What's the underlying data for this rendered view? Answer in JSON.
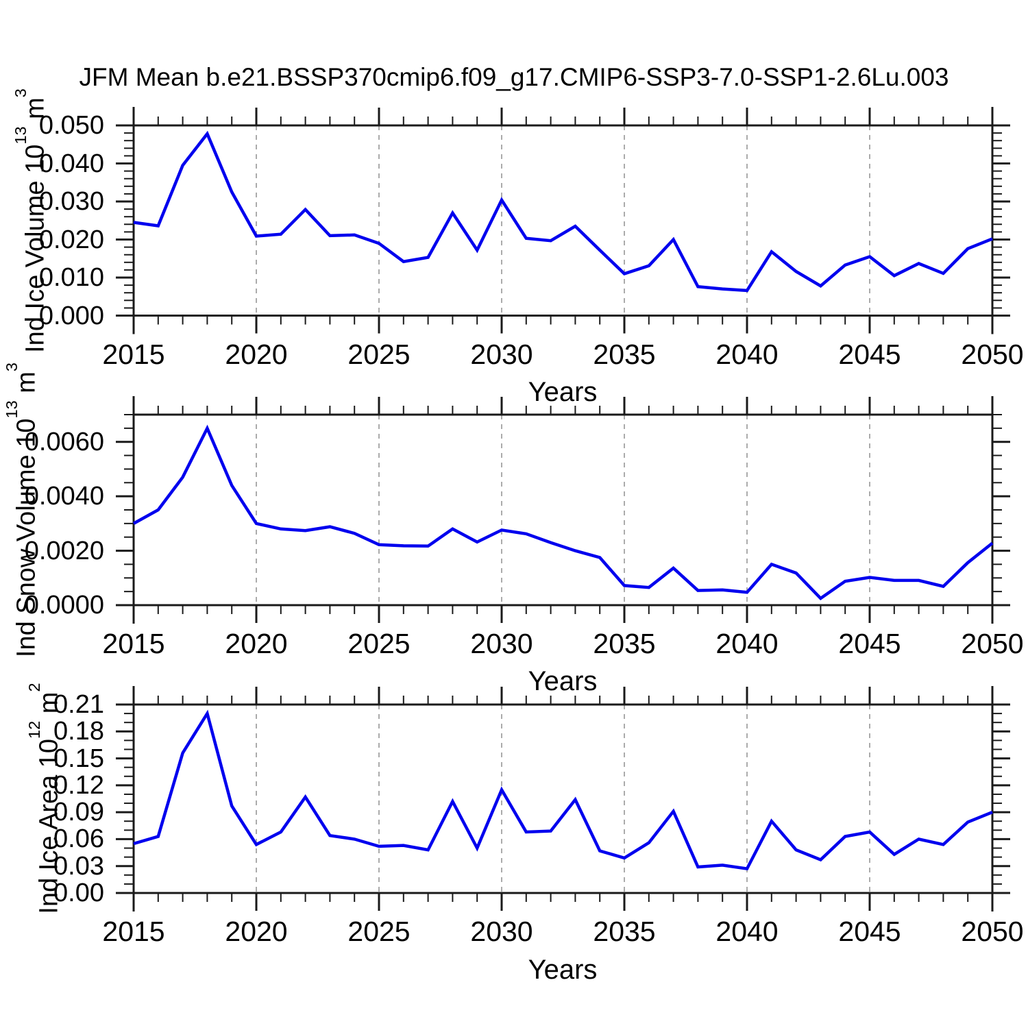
{
  "title": "JFM Mean b.e21.BSSP370cmip6.f09_g17.CMIP6-SSP3-7.0-SSP1-2.6Lu.003",
  "figure": {
    "background": "#ffffff",
    "line_color": "#0000EE",
    "frame_color": "#1a1a1a",
    "grid_color": "#ABABAB",
    "text_color": "#000000"
  },
  "chart_data": [
    {
      "type": "line",
      "title": "",
      "xlabel": "Years",
      "ylabel": "Ind Ice Volume 10^13 m^3",
      "ylabel_parts": {
        "text1": "Ind Ice Volume 10",
        "sup1": "13",
        "text2": " m",
        "sup2": "3"
      },
      "xlim": [
        2015,
        2050
      ],
      "ylim": [
        0,
        0.05
      ],
      "xtick_values": [
        2015,
        2020,
        2025,
        2030,
        2035,
        2040,
        2045,
        2050
      ],
      "xtick_labels": [
        "2015",
        "2020",
        "2025",
        "2030",
        "2035",
        "2040",
        "2045",
        "2050"
      ],
      "xminor_step": 1,
      "ytick_values": [
        0.0,
        0.01,
        0.02,
        0.03,
        0.04,
        0.05
      ],
      "ytick_labels": [
        "0.000",
        "0.010",
        "0.020",
        "0.030",
        "0.040",
        "0.050"
      ],
      "yminor_step": 0.002,
      "grid_x": [
        2020,
        2025,
        2030,
        2035,
        2040,
        2045
      ],
      "grid_style": "dashed-vertical",
      "legend": "none",
      "x": [
        2015,
        2016,
        2017,
        2018,
        2019,
        2020,
        2021,
        2022,
        2023,
        2024,
        2025,
        2026,
        2027,
        2028,
        2029,
        2030,
        2031,
        2032,
        2033,
        2034,
        2035,
        2036,
        2037,
        2038,
        2039,
        2040,
        2041,
        2042,
        2043,
        2044,
        2045,
        2046,
        2047,
        2048,
        2049,
        2050
      ],
      "values": [
        0.0245,
        0.0236,
        0.0395,
        0.0478,
        0.0325,
        0.0209,
        0.0214,
        0.0279,
        0.021,
        0.0212,
        0.019,
        0.0142,
        0.0153,
        0.027,
        0.0172,
        0.0304,
        0.0203,
        0.0197,
        0.0235,
        0.0172,
        0.011,
        0.0131,
        0.02,
        0.0076,
        0.007,
        0.0066,
        0.0168,
        0.0116,
        0.0078,
        0.0133,
        0.0155,
        0.0105,
        0.0137,
        0.0111,
        0.0176,
        0.0202
      ]
    },
    {
      "type": "line",
      "title": "",
      "xlabel": "Years",
      "ylabel": "Ind Snow Volume 10^13 m^3",
      "ylabel_parts": {
        "text1": "Ind Snow Volume 10",
        "sup1": "13",
        "text2": " m",
        "sup2": "3"
      },
      "xlim": [
        2015,
        2050
      ],
      "ylim": [
        0,
        0.007
      ],
      "xtick_values": [
        2015,
        2020,
        2025,
        2030,
        2035,
        2040,
        2045,
        2050
      ],
      "xtick_labels": [
        "2015",
        "2020",
        "2025",
        "2030",
        "2035",
        "2040",
        "2045",
        "2050"
      ],
      "xminor_step": 1,
      "ytick_values": [
        0.0,
        0.002,
        0.004,
        0.006
      ],
      "ytick_labels": [
        "0.0000",
        "0.0020",
        "0.0040",
        "0.0060"
      ],
      "yminor_step": 0.0005,
      "grid_x": [
        2020,
        2025,
        2030,
        2035,
        2040,
        2045
      ],
      "grid_style": "dashed-vertical",
      "legend": "none",
      "x": [
        2015,
        2016,
        2017,
        2018,
        2019,
        2020,
        2021,
        2022,
        2023,
        2024,
        2025,
        2026,
        2027,
        2028,
        2029,
        2030,
        2031,
        2032,
        2033,
        2034,
        2035,
        2036,
        2037,
        2038,
        2039,
        2040,
        2041,
        2042,
        2043,
        2044,
        2045,
        2046,
        2047,
        2048,
        2049,
        2050
      ],
      "values": [
        0.003,
        0.0035,
        0.0047,
        0.0065,
        0.0044,
        0.003,
        0.0028,
        0.00274,
        0.00288,
        0.00264,
        0.00222,
        0.00218,
        0.00217,
        0.0028,
        0.00232,
        0.00276,
        0.00262,
        0.0023,
        0.002,
        0.00175,
        0.00072,
        0.00065,
        0.00136,
        0.00054,
        0.00056,
        0.00047,
        0.0015,
        0.00118,
        0.00025,
        0.00088,
        0.00102,
        0.00091,
        0.00091,
        0.00069,
        0.00156,
        0.00228
      ]
    },
    {
      "type": "line",
      "title": "",
      "xlabel": "Years",
      "ylabel": "Ind Ice Area 10^12 m^2",
      "ylabel_parts": {
        "text1": "Ind Ice Area 10",
        "sup1": "12",
        "text2": " m",
        "sup2": "2"
      },
      "xlim": [
        2015,
        2050
      ],
      "ylim": [
        0,
        0.21
      ],
      "xtick_values": [
        2015,
        2020,
        2025,
        2030,
        2035,
        2040,
        2045,
        2050
      ],
      "xtick_labels": [
        "2015",
        "2020",
        "2025",
        "2030",
        "2035",
        "2040",
        "2045",
        "2050"
      ],
      "xminor_step": 1,
      "ytick_values": [
        0.0,
        0.03,
        0.06,
        0.09,
        0.12,
        0.15,
        0.18,
        0.21
      ],
      "ytick_labels": [
        "0.00",
        "0.03",
        "0.06",
        "0.09",
        "0.12",
        "0.15",
        "0.18",
        "0.21"
      ],
      "yminor_step": 0.01,
      "grid_x": [
        2020,
        2025,
        2030,
        2035,
        2040,
        2045
      ],
      "grid_style": "dashed-vertical",
      "legend": "none",
      "x": [
        2015,
        2016,
        2017,
        2018,
        2019,
        2020,
        2021,
        2022,
        2023,
        2024,
        2025,
        2026,
        2027,
        2028,
        2029,
        2030,
        2031,
        2032,
        2033,
        2034,
        2035,
        2036,
        2037,
        2038,
        2039,
        2040,
        2041,
        2042,
        2043,
        2044,
        2045,
        2046,
        2047,
        2048,
        2049,
        2050
      ],
      "values": [
        0.055,
        0.063,
        0.156,
        0.2,
        0.097,
        0.054,
        0.068,
        0.107,
        0.064,
        0.06,
        0.052,
        0.053,
        0.048,
        0.102,
        0.05,
        0.115,
        0.068,
        0.069,
        0.104,
        0.047,
        0.039,
        0.056,
        0.091,
        0.029,
        0.031,
        0.027,
        0.08,
        0.048,
        0.037,
        0.063,
        0.068,
        0.043,
        0.06,
        0.054,
        0.079,
        0.09
      ]
    }
  ]
}
